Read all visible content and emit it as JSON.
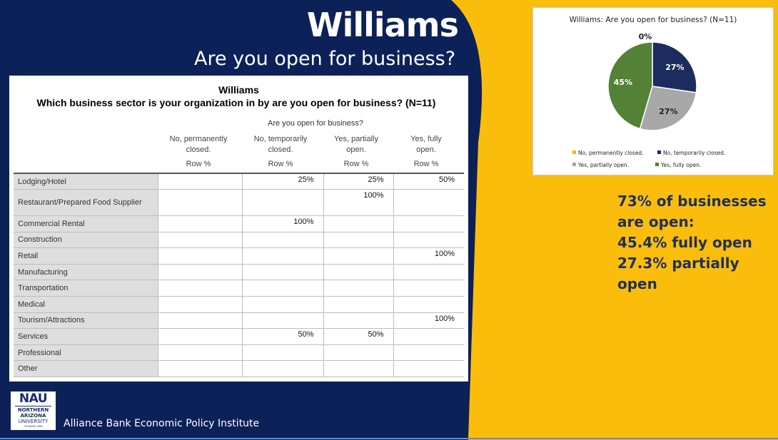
{
  "slide": {
    "title": "Williams",
    "subtitle": "Are you open for business?",
    "colors": {
      "navy": "#0b2158",
      "gold": "#fbbd0c",
      "callout_text": "#203058"
    }
  },
  "crosstab": {
    "title": "Williams",
    "question": "Which business sector is your organization in by are you open for business?  (N=11)",
    "column_group": "Are you open for business?",
    "columns": [
      {
        "line1": "No, permanently",
        "line2": "closed.",
        "unit": "Row %"
      },
      {
        "line1": "No, temporarily",
        "line2": "closed.",
        "unit": "Row %"
      },
      {
        "line1": "Yes, partially",
        "line2": "open.",
        "unit": "Row %"
      },
      {
        "line1": "Yes, fully",
        "line2": "open.",
        "unit": "Row %"
      }
    ],
    "rows": [
      {
        "label": "Lodging/Hotel",
        "cells": [
          "",
          "25%",
          "25%",
          "50%"
        ]
      },
      {
        "label": "Restaurant/Prepared Food Supplier",
        "cells": [
          "",
          "",
          "100%",
          ""
        ]
      },
      {
        "label": "Commercial Rental",
        "cells": [
          "",
          "100%",
          "",
          ""
        ]
      },
      {
        "label": "Construction",
        "cells": [
          "",
          "",
          "",
          ""
        ]
      },
      {
        "label": "Retail",
        "cells": [
          "",
          "",
          "",
          "100%"
        ]
      },
      {
        "label": "Manufacturing",
        "cells": [
          "",
          "",
          "",
          ""
        ]
      },
      {
        "label": "Transportation",
        "cells": [
          "",
          "",
          "",
          ""
        ]
      },
      {
        "label": "Medical",
        "cells": [
          "",
          "",
          "",
          ""
        ]
      },
      {
        "label": "Tourism/Attractions",
        "cells": [
          "",
          "",
          "",
          "100%"
        ]
      },
      {
        "label": "Services",
        "cells": [
          "",
          "50%",
          "50%",
          ""
        ]
      },
      {
        "label": "Professional",
        "cells": [
          "",
          "",
          "",
          ""
        ]
      },
      {
        "label": "Other",
        "cells": [
          "",
          "",
          "",
          ""
        ]
      }
    ]
  },
  "chart_data": {
    "type": "pie",
    "title": "Williams: Are you open for business? (N=11)",
    "legend_position": "bottom",
    "slices": [
      {
        "name": "No, permanently closed.",
        "value": 0,
        "label": "0%",
        "color": "#f2b705"
      },
      {
        "name": "No, temporarily closed.",
        "value": 27,
        "label": "27%",
        "color": "#1c2c5e"
      },
      {
        "name": "Yes, partially open.",
        "value": 27,
        "label": "27%",
        "color": "#a8a8a8"
      },
      {
        "name": "Yes, fully open.",
        "value": 45,
        "label": "45%",
        "color": "#538135"
      }
    ]
  },
  "callout": {
    "lines": [
      "73% of businesses",
      "are open:",
      "45.4% fully open",
      "27.3% partially open"
    ]
  },
  "logo": {
    "mark": "NAU",
    "line1": "NORTHERN",
    "line2": "ARIZONA",
    "line3": "UNIVERSITY",
    "founded": "FOUNDED 1899",
    "icon": "nau-logo-icon"
  },
  "footer": {
    "org_name": "Alliance Bank Economic Policy Institute"
  }
}
